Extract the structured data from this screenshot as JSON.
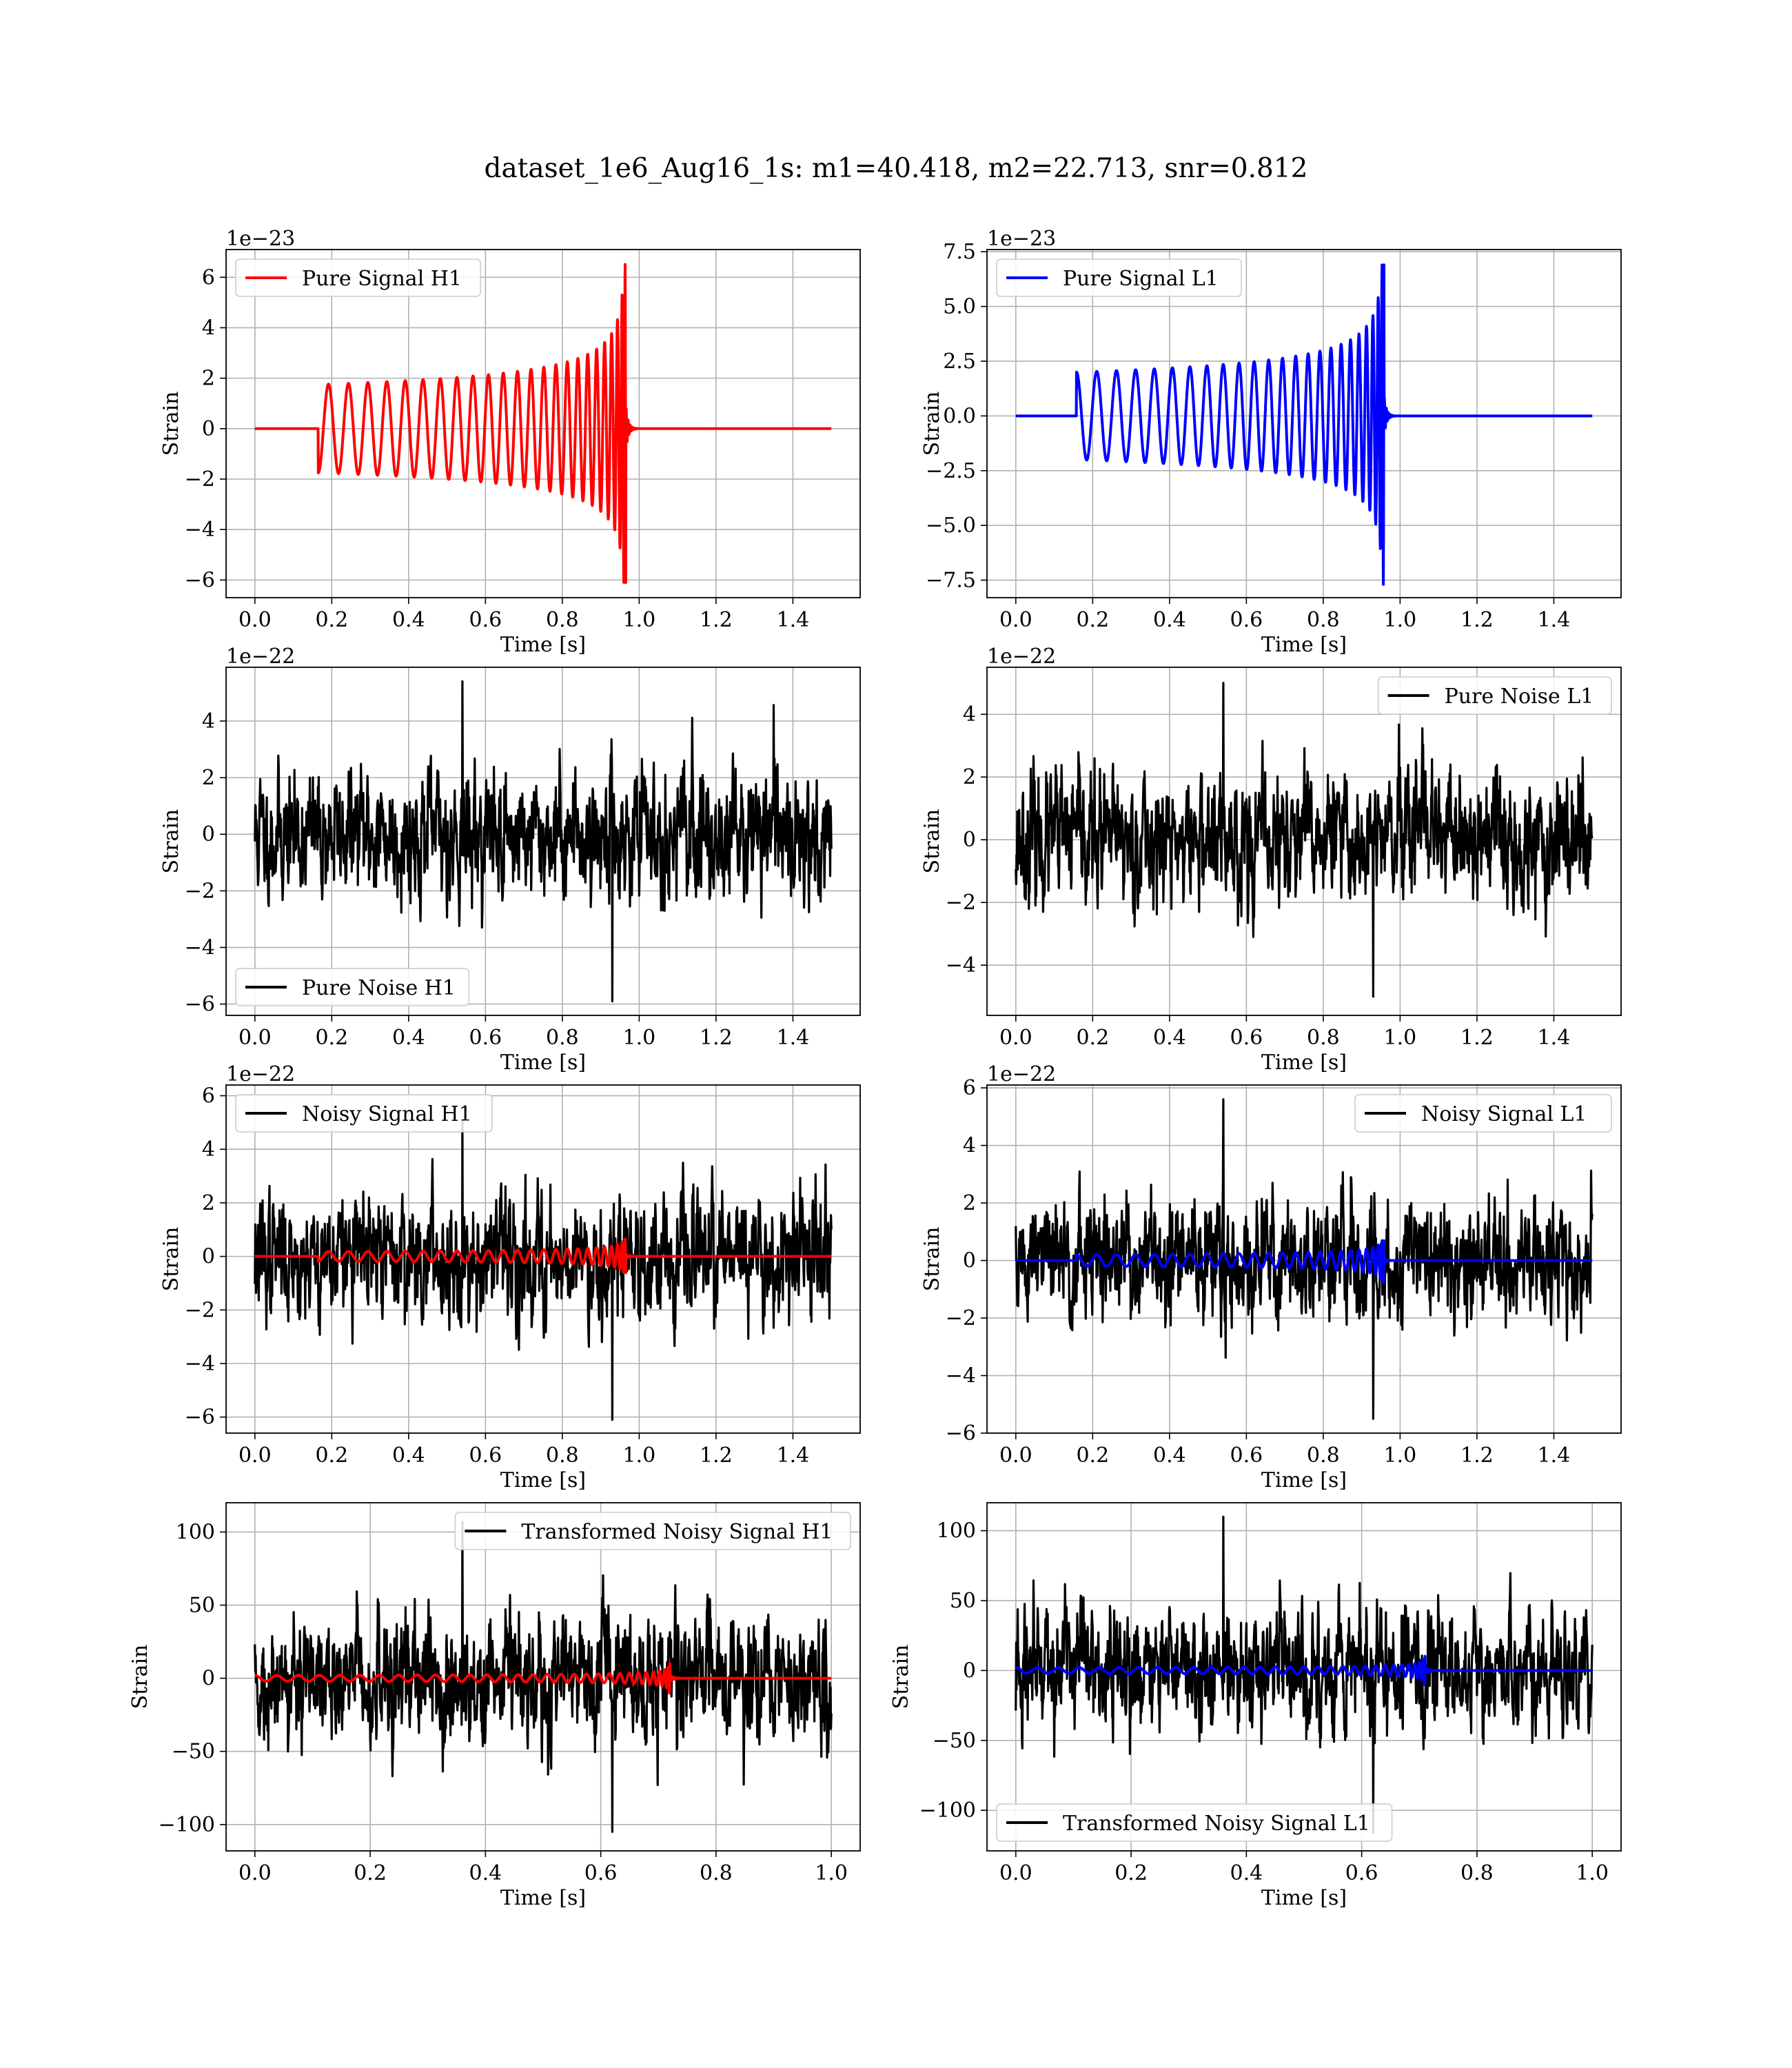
{
  "title": "dataset_1e6_Aug16_1s: m1=40.418, m2=22.713, snr=0.812",
  "colors": {
    "h1_signal": "#ff0000",
    "l1_signal": "#0000ff",
    "noise": "#000000",
    "grid": "#b0b0b0"
  },
  "chart_data": [
    {
      "type": "line",
      "panel": "top-left",
      "xlabel": "Time [s]",
      "ylabel": "Strain",
      "offset_text": "1e−23",
      "xlim": [
        -0.075,
        1.575
      ],
      "ylim": [
        -6.7,
        7.1
      ],
      "xticks": [
        "0.0",
        "0.2",
        "0.4",
        "0.6",
        "0.8",
        "1.0",
        "1.2",
        "1.4"
      ],
      "yticks": [
        "−6",
        "−4",
        "−2",
        "0",
        "2",
        "4",
        "6"
      ],
      "legend": {
        "loc": "upper left"
      },
      "series": [
        {
          "name": "Pure Signal H1",
          "kind": "chirp",
          "color": "#ff0000",
          "x_start": 0.0,
          "x_end": 1.5,
          "t_onset": 0.165,
          "t_merge": 0.965,
          "amp_start": 1.75,
          "amp_peak_pos": 6.6,
          "amp_peak_neg": -6.1,
          "first_sign": -1,
          "cycles": 24
        }
      ]
    },
    {
      "type": "line",
      "panel": "top-right",
      "xlabel": "Time [s]",
      "ylabel": "Strain",
      "offset_text": "1e−23",
      "xlim": [
        -0.075,
        1.575
      ],
      "ylim": [
        -8.3,
        7.6
      ],
      "xticks": [
        "0.0",
        "0.2",
        "0.4",
        "0.6",
        "0.8",
        "1.0",
        "1.2",
        "1.4"
      ],
      "yticks": [
        "−7.5",
        "−5.0",
        "−2.5",
        "0.0",
        "2.5",
        "5.0",
        "7.5"
      ],
      "legend": {
        "loc": "upper left"
      },
      "series": [
        {
          "name": "Pure Signal L1",
          "kind": "chirp",
          "color": "#0000ff",
          "x_start": 0.0,
          "x_end": 1.5,
          "t_onset": 0.158,
          "t_merge": 0.958,
          "amp_start": 2.0,
          "amp_peak_pos": 6.9,
          "amp_peak_neg": -7.8,
          "first_sign": 1,
          "cycles": 24
        }
      ]
    },
    {
      "type": "line",
      "panel": "row2-left",
      "xlabel": "Time [s]",
      "ylabel": "Strain",
      "offset_text": "1e−22",
      "xlim": [
        -0.075,
        1.575
      ],
      "ylim": [
        -6.4,
        5.9
      ],
      "xticks": [
        "0.0",
        "0.2",
        "0.4",
        "0.6",
        "0.8",
        "1.0",
        "1.2",
        "1.4"
      ],
      "yticks": [
        "−6",
        "−4",
        "−2",
        "0",
        "2",
        "4"
      ],
      "legend": {
        "loc": "lower left"
      },
      "series": [
        {
          "name": "Pure Noise H1",
          "kind": "noise",
          "color": "#000000",
          "x_start": 0.0,
          "x_end": 1.5,
          "sigma": 1.55,
          "min": -5.9,
          "max": 5.4,
          "seed": 11
        }
      ]
    },
    {
      "type": "line",
      "panel": "row2-right",
      "xlabel": "Time [s]",
      "ylabel": "Strain",
      "offset_text": "1e−22",
      "xlim": [
        -0.075,
        1.575
      ],
      "ylim": [
        -5.6,
        5.5
      ],
      "xticks": [
        "0.0",
        "0.2",
        "0.4",
        "0.6",
        "0.8",
        "1.0",
        "1.2",
        "1.4"
      ],
      "yticks": [
        "−4",
        "−2",
        "0",
        "2",
        "4"
      ],
      "legend": {
        "loc": "upper right"
      },
      "series": [
        {
          "name": "Pure Noise L1",
          "kind": "noise",
          "color": "#000000",
          "x_start": 0.0,
          "x_end": 1.5,
          "sigma": 1.45,
          "min": -5.0,
          "max": 5.0,
          "seed": 23
        }
      ]
    },
    {
      "type": "line",
      "panel": "row3-left",
      "xlabel": "Time [s]",
      "ylabel": "Strain",
      "offset_text": "1e−22",
      "xlim": [
        -0.075,
        1.575
      ],
      "ylim": [
        -6.6,
        6.4
      ],
      "xticks": [
        "0.0",
        "0.2",
        "0.4",
        "0.6",
        "0.8",
        "1.0",
        "1.2",
        "1.4"
      ],
      "yticks": [
        "−6",
        "−4",
        "−2",
        "0",
        "2",
        "4",
        "6"
      ],
      "legend": {
        "loc": "upper left"
      },
      "series": [
        {
          "name": "Noisy Signal H1",
          "kind": "noise",
          "color": "#000000",
          "x_start": 0.0,
          "x_end": 1.5,
          "sigma": 1.6,
          "min": -6.1,
          "max": 5.1,
          "seed": 37
        },
        {
          "kind": "chirp",
          "color": "#ff0000",
          "x_start": 0.0,
          "x_end": 1.5,
          "t_onset": 0.165,
          "t_merge": 0.965,
          "amp_start": 0.18,
          "amp_peak_pos": 0.66,
          "amp_peak_neg": -0.61,
          "first_sign": -1,
          "cycles": 24
        }
      ]
    },
    {
      "type": "line",
      "panel": "row3-right",
      "xlabel": "Time [s]",
      "ylabel": "Strain",
      "offset_text": "1e−22",
      "xlim": [
        -0.075,
        1.575
      ],
      "ylim": [
        -6.0,
        6.1
      ],
      "xticks": [
        "0.0",
        "0.2",
        "0.4",
        "0.6",
        "0.8",
        "1.0",
        "1.2",
        "1.4"
      ],
      "yticks": [
        "−6",
        "−4",
        "−2",
        "0",
        "2",
        "4",
        "6"
      ],
      "legend": {
        "loc": "upper right"
      },
      "series": [
        {
          "name": "Noisy Signal L1",
          "kind": "noise",
          "color": "#000000",
          "x_start": 0.0,
          "x_end": 1.5,
          "sigma": 1.5,
          "min": -5.5,
          "max": 5.6,
          "seed": 51
        },
        {
          "kind": "chirp",
          "color": "#0000ff",
          "x_start": 0.0,
          "x_end": 1.5,
          "t_onset": 0.158,
          "t_merge": 0.958,
          "amp_start": 0.2,
          "amp_peak_pos": 0.69,
          "amp_peak_neg": -0.78,
          "first_sign": 1,
          "cycles": 24
        }
      ]
    },
    {
      "type": "line",
      "panel": "bottom-left",
      "xlabel": "Time [s]",
      "ylabel": "Strain",
      "offset_text": "",
      "xlim": [
        -0.05,
        1.05
      ],
      "ylim": [
        -118,
        120
      ],
      "xticks": [
        "0.0",
        "0.2",
        "0.4",
        "0.6",
        "0.8",
        "1.0"
      ],
      "yticks": [
        "−100",
        "−50",
        "0",
        "50",
        "100"
      ],
      "legend": {
        "loc": "upper right"
      },
      "series": [
        {
          "name": "Transformed Noisy Signal H1",
          "kind": "noise",
          "color": "#000000",
          "x_start": 0.0,
          "x_end": 1.0,
          "sigma": 30,
          "min": -105,
          "max": 107,
          "seed": 73
        },
        {
          "kind": "chirp",
          "color": "#ff0000",
          "x_start": 0.0,
          "x_end": 1.0,
          "t_onset": 0.0,
          "t_merge": 0.72,
          "amp_start": 2.0,
          "amp_peak_pos": 18,
          "amp_peak_neg": -18,
          "first_sign": 1,
          "cycles": 30
        }
      ]
    },
    {
      "type": "line",
      "panel": "bottom-right",
      "xlabel": "Time [s]",
      "ylabel": "Strain",
      "offset_text": "",
      "xlim": [
        -0.05,
        1.05
      ],
      "ylim": [
        -129,
        120
      ],
      "xticks": [
        "0.0",
        "0.2",
        "0.4",
        "0.6",
        "0.8",
        "1.0"
      ],
      "yticks": [
        "−100",
        "−50",
        "0",
        "50",
        "100"
      ],
      "legend": {
        "loc": "lower left"
      },
      "series": [
        {
          "name": "Transformed Noisy Signal L1",
          "kind": "noise",
          "color": "#000000",
          "x_start": 0.0,
          "x_end": 1.0,
          "sigma": 31,
          "min": -116,
          "max": 110,
          "seed": 91
        },
        {
          "kind": "chirp",
          "color": "#0000ff",
          "x_start": 0.0,
          "x_end": 1.0,
          "t_onset": 0.0,
          "t_merge": 0.71,
          "amp_start": 2.0,
          "amp_peak_pos": 18,
          "amp_peak_neg": -18,
          "first_sign": 1,
          "cycles": 30
        }
      ]
    }
  ]
}
